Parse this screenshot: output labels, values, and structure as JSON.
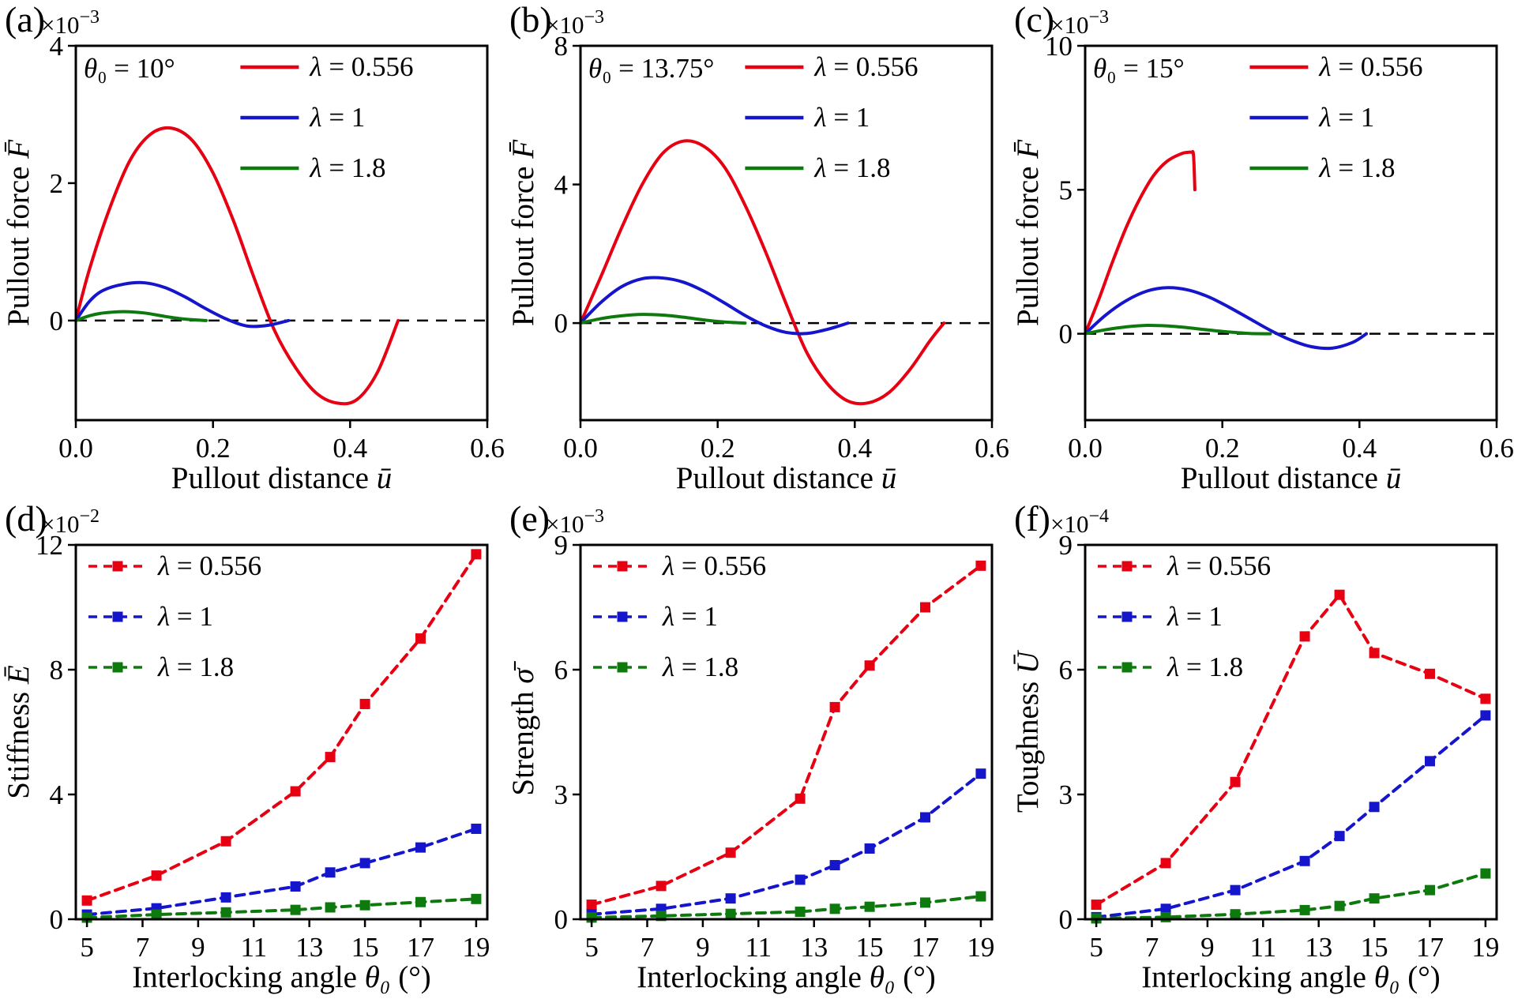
{
  "figure": {
    "background": "#ffffff"
  },
  "colors": {
    "red": "#e60012",
    "blue": "#1515cc",
    "green": "#0e7a0e",
    "axis": "#000000"
  },
  "chart_data": [
    {
      "type": "line",
      "panel_label": "(a)",
      "annotation": "θ₀ = 10°",
      "scale": {
        "base": "×10",
        "exp": "−3"
      },
      "xlabel": {
        "pre": "Pullout distance ",
        "var": "ū"
      },
      "ylabel": {
        "pre": "Pullout force ",
        "var": "F̄"
      },
      "xlim": [
        0,
        0.6
      ],
      "ylim": [
        -1.45,
        4
      ],
      "xticks": {
        "values": [
          0,
          0.2,
          0.4,
          0.6
        ],
        "labels": [
          "0.0",
          "0.2",
          "0.4",
          "0.6"
        ]
      },
      "yticks": {
        "values": [
          0,
          2,
          4
        ],
        "labels": [
          "0",
          "2",
          "4"
        ]
      },
      "zero_line": true,
      "legend": {
        "position": "top-right"
      },
      "series": [
        {
          "name": "λ = 0.556",
          "color": "#e60012",
          "style": "solid",
          "marker": "none",
          "x": [
            0,
            0.02,
            0.05,
            0.08,
            0.11,
            0.14,
            0.17,
            0.2,
            0.23,
            0.26,
            0.29,
            0.32,
            0.35,
            0.38,
            0.41,
            0.44,
            0.47
          ],
          "y": [
            0,
            0.75,
            1.65,
            2.35,
            2.72,
            2.8,
            2.62,
            2.15,
            1.45,
            0.62,
            -0.15,
            -0.68,
            -1.05,
            -1.2,
            -1.15,
            -0.75,
            0
          ]
        },
        {
          "name": "λ = 1",
          "color": "#1515cc",
          "style": "solid",
          "marker": "none",
          "x": [
            0,
            0.02,
            0.04,
            0.07,
            0.1,
            0.13,
            0.16,
            0.19,
            0.22,
            0.25,
            0.28,
            0.31
          ],
          "y": [
            0,
            0.28,
            0.44,
            0.53,
            0.55,
            0.48,
            0.34,
            0.17,
            0.02,
            -0.08,
            -0.07,
            0
          ]
        },
        {
          "name": "λ = 1.8",
          "color": "#0e7a0e",
          "style": "solid",
          "marker": "none",
          "x": [
            0,
            0.02,
            0.04,
            0.07,
            0.1,
            0.13,
            0.16,
            0.19
          ],
          "y": [
            0,
            0.07,
            0.11,
            0.13,
            0.11,
            0.06,
            0.02,
            0
          ]
        }
      ]
    },
    {
      "type": "line",
      "panel_label": "(b)",
      "annotation": "θ₀ = 13.75°",
      "scale": {
        "base": "×10",
        "exp": "−3"
      },
      "xlabel": {
        "pre": "Pullout distance ",
        "var": "ū"
      },
      "ylabel": {
        "pre": "Pullout force ",
        "var": "F̄"
      },
      "xlim": [
        0,
        0.6
      ],
      "ylim": [
        -2.8,
        8
      ],
      "xticks": {
        "values": [
          0,
          0.2,
          0.4,
          0.6
        ],
        "labels": [
          "0.0",
          "0.2",
          "0.4",
          "0.6"
        ]
      },
      "yticks": {
        "values": [
          0,
          4,
          8
        ],
        "labels": [
          "0",
          "4",
          "8"
        ]
      },
      "zero_line": true,
      "legend": {
        "position": "top-right"
      },
      "series": [
        {
          "name": "λ = 0.556",
          "color": "#e60012",
          "style": "solid",
          "marker": "none",
          "x": [
            0,
            0.03,
            0.06,
            0.09,
            0.12,
            0.15,
            0.18,
            0.21,
            0.24,
            0.27,
            0.3,
            0.33,
            0.36,
            0.39,
            0.42,
            0.45,
            0.48,
            0.51,
            0.53
          ],
          "y": [
            0,
            1.35,
            2.75,
            4.0,
            4.9,
            5.25,
            5.1,
            4.5,
            3.4,
            2.05,
            0.55,
            -0.85,
            -1.75,
            -2.25,
            -2.3,
            -2.0,
            -1.35,
            -0.5,
            0
          ]
        },
        {
          "name": "λ = 1",
          "color": "#1515cc",
          "style": "solid",
          "marker": "none",
          "x": [
            0,
            0.03,
            0.06,
            0.09,
            0.12,
            0.15,
            0.18,
            0.21,
            0.24,
            0.27,
            0.3,
            0.33,
            0.36,
            0.39
          ],
          "y": [
            0,
            0.6,
            1.05,
            1.28,
            1.3,
            1.18,
            0.92,
            0.58,
            0.22,
            -0.08,
            -0.27,
            -0.3,
            -0.18,
            0
          ]
        },
        {
          "name": "λ = 1.8",
          "color": "#0e7a0e",
          "style": "solid",
          "marker": "none",
          "x": [
            0,
            0.03,
            0.06,
            0.09,
            0.12,
            0.15,
            0.18,
            0.21,
            0.24
          ],
          "y": [
            0,
            0.13,
            0.21,
            0.25,
            0.23,
            0.17,
            0.09,
            0.03,
            0
          ]
        }
      ]
    },
    {
      "type": "line",
      "panel_label": "(c)",
      "annotation": "θ₀ = 15°",
      "scale": {
        "base": "×10",
        "exp": "−3"
      },
      "xlabel": {
        "pre": "Pullout distance ",
        "var": "ū"
      },
      "ylabel": {
        "pre": "Pullout force ",
        "var": "F̄"
      },
      "xlim": [
        0,
        0.6
      ],
      "ylim": [
        -3,
        10
      ],
      "xticks": {
        "values": [
          0,
          0.2,
          0.4,
          0.6
        ],
        "labels": [
          "0.0",
          "0.2",
          "0.4",
          "0.6"
        ]
      },
      "yticks": {
        "values": [
          0,
          5,
          10
        ],
        "labels": [
          "0",
          "5",
          "10"
        ]
      },
      "zero_line": true,
      "legend": {
        "position": "top-right"
      },
      "series": [
        {
          "name": "λ = 0.556",
          "color": "#e60012",
          "style": "solid",
          "marker": "none",
          "x": [
            0,
            0.02,
            0.04,
            0.06,
            0.08,
            0.1,
            0.12,
            0.14,
            0.15,
            0.155,
            0.158,
            0.16
          ],
          "y": [
            0,
            1.2,
            2.5,
            3.7,
            4.7,
            5.5,
            6.0,
            6.25,
            6.3,
            6.3,
            6.2,
            5.0
          ]
        },
        {
          "name": "λ = 1",
          "color": "#1515cc",
          "style": "solid",
          "marker": "none",
          "x": [
            0,
            0.03,
            0.06,
            0.09,
            0.12,
            0.15,
            0.18,
            0.21,
            0.24,
            0.27,
            0.3,
            0.33,
            0.36,
            0.39,
            0.41
          ],
          "y": [
            0,
            0.65,
            1.15,
            1.48,
            1.6,
            1.52,
            1.28,
            0.92,
            0.52,
            0.12,
            -0.22,
            -0.45,
            -0.5,
            -0.3,
            0
          ]
        },
        {
          "name": "λ = 1.8",
          "color": "#0e7a0e",
          "style": "solid",
          "marker": "none",
          "x": [
            0,
            0.03,
            0.06,
            0.09,
            0.12,
            0.15,
            0.18,
            0.21,
            0.24,
            0.27
          ],
          "y": [
            0,
            0.14,
            0.24,
            0.29,
            0.27,
            0.21,
            0.13,
            0.06,
            0.01,
            0
          ]
        }
      ]
    },
    {
      "type": "scatter-line",
      "panel_label": "(d)",
      "annotation": null,
      "scale": {
        "base": "×10",
        "exp": "−2"
      },
      "xlabel": {
        "pre": "Interlocking angle ",
        "var": "θ₀",
        "post": " (°)"
      },
      "ylabel": {
        "pre": "Stiffness ",
        "var": "Ē"
      },
      "xlim": [
        4.6,
        19.4
      ],
      "ylim": [
        0,
        12
      ],
      "xticks": {
        "values": [
          5,
          7,
          9,
          11,
          13,
          15,
          17,
          19
        ],
        "labels": [
          "5",
          "7",
          "9",
          "11",
          "13",
          "15",
          "17",
          "19"
        ]
      },
      "yticks": {
        "values": [
          0,
          4,
          8,
          12
        ],
        "labels": [
          "0",
          "4",
          "8",
          "12"
        ]
      },
      "zero_line": false,
      "legend": {
        "position": "top-left"
      },
      "series": [
        {
          "name": "λ = 0.556",
          "color": "#e60012",
          "style": "dashed",
          "marker": "square",
          "smooth": false,
          "x": [
            5,
            7.5,
            10,
            12.5,
            13.75,
            15,
            17,
            19
          ],
          "y": [
            0.6,
            1.4,
            2.5,
            4.1,
            5.2,
            6.9,
            9.0,
            11.7
          ]
        },
        {
          "name": "λ = 1",
          "color": "#1515cc",
          "style": "dashed",
          "marker": "square",
          "smooth": false,
          "x": [
            5,
            7.5,
            10,
            12.5,
            13.75,
            15,
            17,
            19
          ],
          "y": [
            0.15,
            0.35,
            0.7,
            1.05,
            1.5,
            1.8,
            2.3,
            2.9
          ]
        },
        {
          "name": "λ = 1.8",
          "color": "#0e7a0e",
          "style": "dashed",
          "marker": "square",
          "smooth": false,
          "x": [
            5,
            7.5,
            10,
            12.5,
            13.75,
            15,
            17,
            19
          ],
          "y": [
            0.05,
            0.15,
            0.22,
            0.3,
            0.38,
            0.45,
            0.55,
            0.65
          ]
        }
      ]
    },
    {
      "type": "scatter-line",
      "panel_label": "(e)",
      "annotation": null,
      "scale": {
        "base": "×10",
        "exp": "−3"
      },
      "xlabel": {
        "pre": "Interlocking angle ",
        "var": "θ₀",
        "post": " (°)"
      },
      "ylabel": {
        "pre": "Strength ",
        "var": "σ̄"
      },
      "xlim": [
        4.6,
        19.4
      ],
      "ylim": [
        0,
        9
      ],
      "xticks": {
        "values": [
          5,
          7,
          9,
          11,
          13,
          15,
          17,
          19
        ],
        "labels": [
          "5",
          "7",
          "9",
          "11",
          "13",
          "15",
          "17",
          "19"
        ]
      },
      "yticks": {
        "values": [
          0,
          3,
          6,
          9
        ],
        "labels": [
          "0",
          "3",
          "6",
          "9"
        ]
      },
      "zero_line": false,
      "legend": {
        "position": "top-left"
      },
      "series": [
        {
          "name": "λ = 0.556",
          "color": "#e60012",
          "style": "dashed",
          "marker": "square",
          "smooth": false,
          "x": [
            5,
            7.5,
            10,
            12.5,
            13.75,
            15,
            17,
            19
          ],
          "y": [
            0.35,
            0.8,
            1.6,
            2.9,
            5.1,
            6.1,
            7.5,
            8.5
          ]
        },
        {
          "name": "λ = 1",
          "color": "#1515cc",
          "style": "dashed",
          "marker": "square",
          "smooth": false,
          "x": [
            5,
            7.5,
            10,
            12.5,
            13.75,
            15,
            17,
            19
          ],
          "y": [
            0.12,
            0.25,
            0.5,
            0.95,
            1.3,
            1.7,
            2.45,
            3.5
          ]
        },
        {
          "name": "λ = 1.8",
          "color": "#0e7a0e",
          "style": "dashed",
          "marker": "square",
          "smooth": false,
          "x": [
            5,
            7.5,
            10,
            12.5,
            13.75,
            15,
            17,
            19
          ],
          "y": [
            0.04,
            0.08,
            0.13,
            0.18,
            0.25,
            0.3,
            0.4,
            0.55
          ]
        }
      ]
    },
    {
      "type": "scatter-line",
      "panel_label": "(f)",
      "annotation": null,
      "scale": {
        "base": "×10",
        "exp": "−4"
      },
      "xlabel": {
        "pre": "Interlocking angle ",
        "var": "θ₀",
        "post": " (°)"
      },
      "ylabel": {
        "pre": "Toughness ",
        "var": "Ū"
      },
      "xlim": [
        4.6,
        19.4
      ],
      "ylim": [
        0,
        9
      ],
      "xticks": {
        "values": [
          5,
          7,
          9,
          11,
          13,
          15,
          17,
          19
        ],
        "labels": [
          "5",
          "7",
          "9",
          "11",
          "13",
          "15",
          "17",
          "19"
        ]
      },
      "yticks": {
        "values": [
          0,
          3,
          6,
          9
        ],
        "labels": [
          "0",
          "3",
          "6",
          "9"
        ]
      },
      "zero_line": false,
      "legend": {
        "position": "top-left"
      },
      "series": [
        {
          "name": "λ = 0.556",
          "color": "#e60012",
          "style": "dashed",
          "marker": "square",
          "smooth": false,
          "x": [
            5,
            7.5,
            10,
            12.5,
            13.75,
            15,
            17,
            19
          ],
          "y": [
            0.35,
            1.35,
            3.3,
            6.8,
            7.8,
            6.4,
            5.9,
            5.3
          ]
        },
        {
          "name": "λ = 1",
          "color": "#1515cc",
          "style": "dashed",
          "marker": "square",
          "smooth": false,
          "x": [
            5,
            7.5,
            10,
            12.5,
            13.75,
            15,
            17,
            19
          ],
          "y": [
            0.05,
            0.25,
            0.7,
            1.4,
            2.0,
            2.7,
            3.8,
            4.9
          ]
        },
        {
          "name": "λ = 1.8",
          "color": "#0e7a0e",
          "style": "dashed",
          "marker": "square",
          "smooth": false,
          "x": [
            5,
            7.5,
            10,
            12.5,
            13.75,
            15,
            17,
            19
          ],
          "y": [
            0.02,
            0.05,
            0.12,
            0.22,
            0.32,
            0.5,
            0.7,
            1.1
          ]
        }
      ]
    }
  ]
}
